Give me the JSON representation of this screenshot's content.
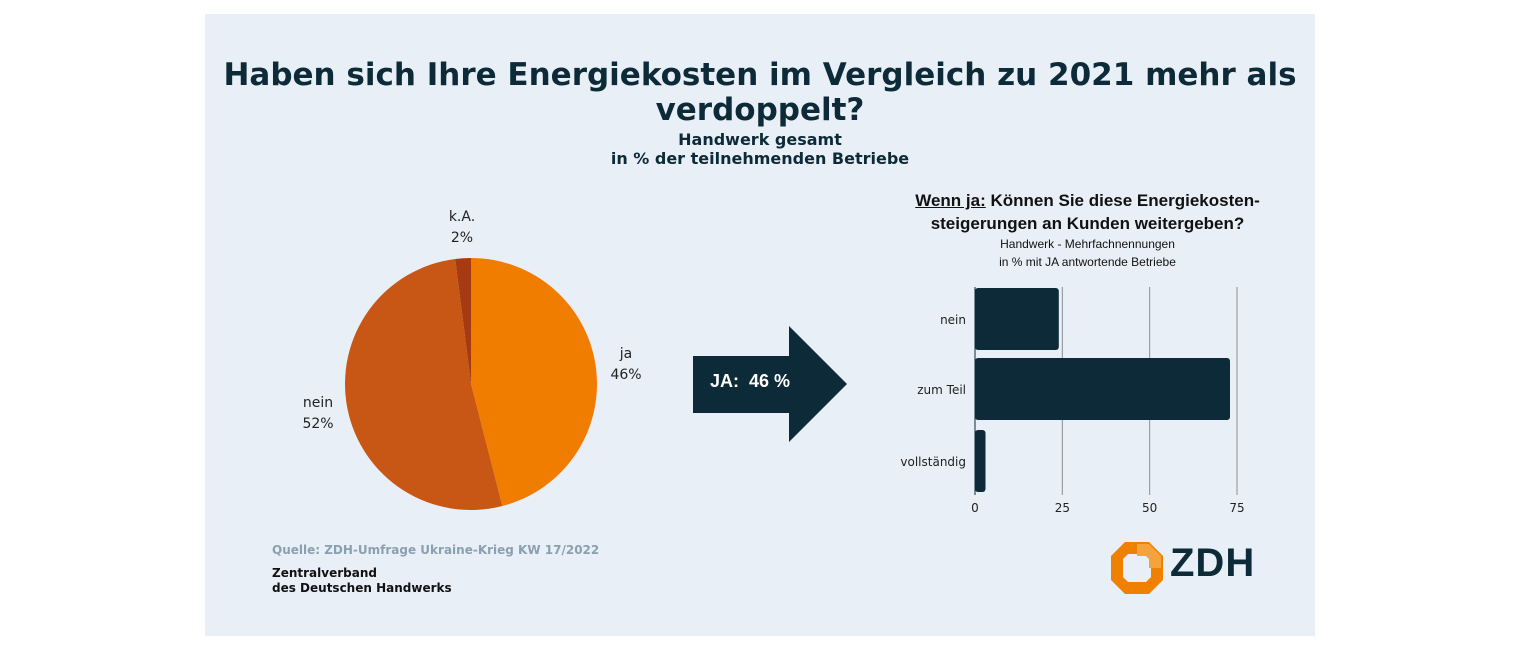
{
  "title": {
    "main": "Haben sich Ihre Energiekosten im Vergleich zu 2021 mehr als verdoppelt?",
    "sub1": "Handwerk gesamt",
    "sub2": "in % der teilnehmenden Betriebe"
  },
  "arrow": {
    "text": "JA:  46 %",
    "color": "#0c2a37"
  },
  "source": "Quelle: ZDH-Umfrage Ukraine-Krieg KW 17/2022",
  "org": {
    "line1": "Zentralverband",
    "line2": "des Deutschen Handwerks"
  },
  "logo": {
    "text": "ZDH",
    "color": "#f08000"
  },
  "chart_data": [
    {
      "type": "pie",
      "title": "Handwerk gesamt",
      "slices": [
        {
          "label": "ja",
          "value": 46,
          "value_label": "46%",
          "color": "#f07d00"
        },
        {
          "label": "nein",
          "value": 52,
          "value_label": "52%",
          "color": "#c85614"
        },
        {
          "label": "k.A.",
          "value": 2,
          "value_label": "2%",
          "color": "#a63a12"
        }
      ]
    },
    {
      "type": "bar",
      "orientation": "horizontal",
      "title_prefix": "Wenn ja:",
      "title_line1": "Können Sie diese Energiekosten-",
      "title_line2": "steigerungen an Kunden weitergeben?",
      "subtitle1": "Handwerk - Mehrfachnennungen",
      "subtitle2": "in % mit JA antwortende Betriebe",
      "categories": [
        "nein",
        "zum Teil",
        "vollständig"
      ],
      "values": [
        24,
        73,
        3
      ],
      "xlim": [
        0,
        75
      ],
      "xticks": [
        "0",
        "25",
        "50",
        "75"
      ],
      "grid": true,
      "color": "#0c2a37"
    }
  ]
}
